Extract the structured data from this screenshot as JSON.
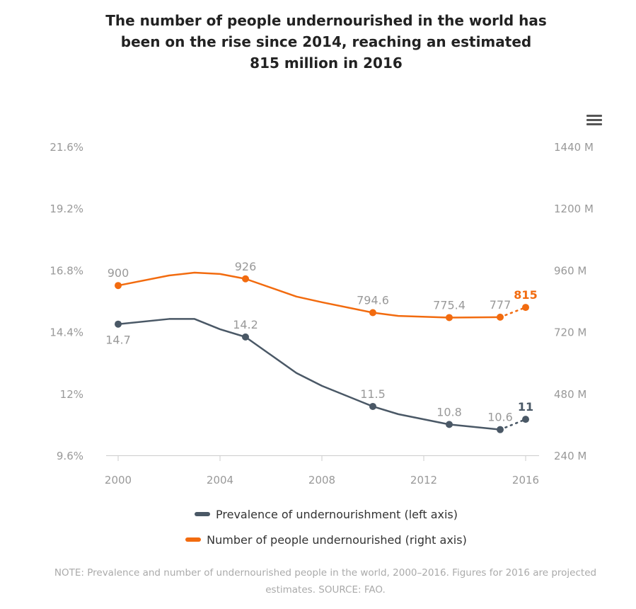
{
  "title_lines": [
    "The number of people undernourished in the world has",
    "been on the rise since 2014, reaching an estimated",
    "815 million in 2016"
  ],
  "menu_icon": "hamburger-menu-icon",
  "chart_data": {
    "type": "line",
    "title": "The number of people undernourished in the world has been on the rise since 2014, reaching an estimated 815 million in 2016",
    "x": [
      2000,
      2002,
      2003,
      2004,
      2005,
      2007,
      2008,
      2010,
      2011,
      2013,
      2015,
      2016
    ],
    "x_ticks": [
      "2000",
      "2004",
      "2008",
      "2012",
      "2016"
    ],
    "x_tick_values": [
      2000,
      2004,
      2008,
      2012,
      2016
    ],
    "left_axis": {
      "ticks": [
        "9.6%",
        "12%",
        "14.4%",
        "16.8%",
        "19.2%",
        "21.6%"
      ],
      "range": [
        9.6,
        21.6
      ]
    },
    "right_axis": {
      "ticks": [
        "240 M",
        "480 M",
        "720 M",
        "960 M",
        "1200 M",
        "1440 M"
      ],
      "range": [
        240,
        1440
      ]
    },
    "series": [
      {
        "name": "Prevalence of undernourishment (left axis)",
        "axis": "left",
        "color": "#4a5866",
        "values": [
          14.7,
          14.9,
          14.9,
          14.5,
          14.2,
          12.8,
          12.3,
          11.5,
          11.2,
          10.8,
          10.6,
          11
        ],
        "labels": {
          "2000": "14.7",
          "2005": "14.2",
          "2010": "11.5",
          "2013": "10.8",
          "2015": "10.6",
          "2016": "11"
        }
      },
      {
        "name": "Number of people undernourished (right axis)",
        "axis": "right",
        "color": "#f26b0f",
        "values": [
          900,
          939,
          950,
          945,
          926,
          857,
          835,
          794.6,
          782,
          775.4,
          777,
          815
        ],
        "labels": {
          "2000": "900",
          "2005": "926",
          "2010": "794.6",
          "2013": "775.4",
          "2015": "777",
          "2016": "815"
        }
      }
    ],
    "projected_from": 2015,
    "legend_position": "bottom"
  },
  "note": "NOTE: Prevalence and number of undernourished people in the world, 2000–2016. Figures for 2016 are projected estimates. SOURCE: FAO."
}
